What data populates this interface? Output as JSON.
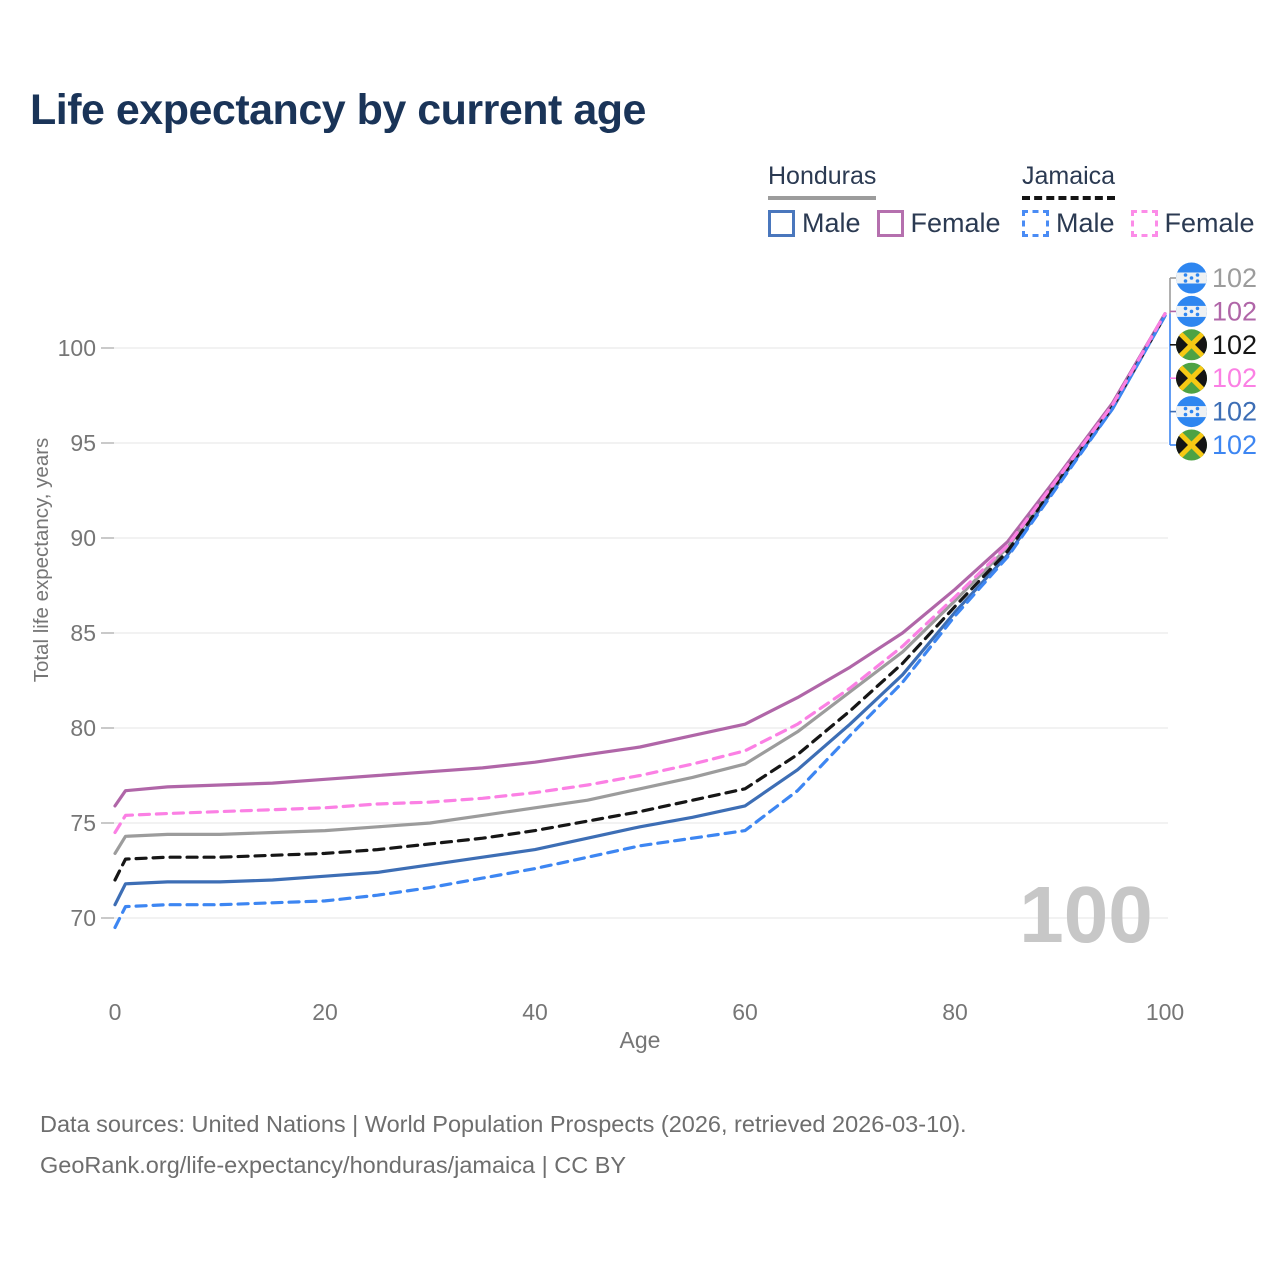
{
  "title": "Life expectancy by current age",
  "watermark": "100",
  "legend": {
    "groups": [
      {
        "name": "Honduras",
        "line_style": "solid",
        "line_color": "#9c9c9c",
        "items": [
          {
            "label": "Male",
            "color": "#4a77bd",
            "dashed": false
          },
          {
            "label": "Female",
            "color": "#b570ae",
            "dashed": false
          }
        ]
      },
      {
        "name": "Jamaica",
        "line_style": "dashed",
        "line_color": "#141414",
        "items": [
          {
            "label": "Male",
            "color": "#4a8cf5",
            "dashed": true
          },
          {
            "label": "Female",
            "color": "#fc8ce8",
            "dashed": true
          }
        ]
      }
    ]
  },
  "footer": {
    "line1": "Data sources: United Nations | World Population Prospects (2026, retrieved 2026-03-10).",
    "line2": "GeoRank.org/life-expectancy/honduras/jamaica | CC BY"
  },
  "chart_data": {
    "type": "line",
    "title": "Life expectancy by current age",
    "xlabel": "Age",
    "ylabel": "Total life expectancy, years",
    "xlim": [
      0,
      100
    ],
    "ylim": [
      68.5,
      103
    ],
    "x_ticks": [
      0,
      20,
      40,
      60,
      80,
      100
    ],
    "y_ticks": [
      70,
      75,
      80,
      85,
      90,
      95,
      100
    ],
    "grid": "horizontal",
    "legend_position": "top-right",
    "age_annotation": "100",
    "x": [
      0,
      1,
      5,
      10,
      15,
      20,
      25,
      30,
      35,
      40,
      45,
      50,
      55,
      60,
      65,
      70,
      75,
      80,
      85,
      90,
      95,
      100
    ],
    "series": [
      {
        "id": "honduras-total",
        "name": "Honduras — Total",
        "country": "Honduras",
        "flag": "honduras",
        "color": "#9c9c9c",
        "dash": false,
        "end_value_label": "102",
        "values": [
          73.4,
          74.3,
          74.4,
          74.4,
          74.5,
          74.6,
          74.8,
          75.0,
          75.4,
          75.8,
          76.2,
          76.8,
          77.4,
          78.1,
          79.8,
          81.9,
          84.0,
          86.7,
          89.5,
          93.2,
          96.9,
          101.8
        ]
      },
      {
        "id": "honduras-female",
        "name": "Honduras — Female",
        "country": "Honduras",
        "flag": "honduras",
        "color": "#b066a8",
        "dash": false,
        "end_value_label": "102",
        "values": [
          75.9,
          76.7,
          76.9,
          77.0,
          77.1,
          77.3,
          77.5,
          77.7,
          77.9,
          78.2,
          78.6,
          79.0,
          79.6,
          80.2,
          81.6,
          83.2,
          85.0,
          87.3,
          89.8,
          93.4,
          97.1,
          101.8
        ]
      },
      {
        "id": "jamaica-total",
        "name": "Jamaica — Total",
        "country": "Jamaica",
        "flag": "jamaica",
        "color": "#161616",
        "dash": true,
        "end_value_label": "102",
        "values": [
          72.0,
          73.1,
          73.2,
          73.2,
          73.3,
          73.4,
          73.6,
          73.9,
          74.2,
          74.6,
          75.1,
          75.6,
          76.2,
          76.8,
          78.6,
          80.9,
          83.4,
          86.4,
          89.3,
          93.1,
          96.9,
          101.7
        ]
      },
      {
        "id": "jamaica-female",
        "name": "Jamaica — Female",
        "country": "Jamaica",
        "flag": "jamaica",
        "color": "#fb80e4",
        "dash": true,
        "end_value_label": "102",
        "values": [
          74.5,
          75.4,
          75.5,
          75.6,
          75.7,
          75.8,
          76.0,
          76.1,
          76.3,
          76.6,
          77.0,
          77.5,
          78.1,
          78.8,
          80.2,
          82.1,
          84.3,
          86.9,
          89.6,
          93.3,
          97.0,
          101.8
        ]
      },
      {
        "id": "honduras-male",
        "name": "Honduras — Male",
        "country": "Honduras",
        "flag": "honduras",
        "color": "#3d6eb5",
        "dash": false,
        "end_value_label": "102",
        "values": [
          70.7,
          71.8,
          71.9,
          71.9,
          72.0,
          72.2,
          72.4,
          72.8,
          73.2,
          73.6,
          74.2,
          74.8,
          75.3,
          75.9,
          77.8,
          80.2,
          82.8,
          86.1,
          89.1,
          93.0,
          96.8,
          101.7
        ]
      },
      {
        "id": "jamaica-male",
        "name": "Jamaica — Male",
        "country": "Jamaica",
        "flag": "jamaica",
        "color": "#3d86f2",
        "dash": true,
        "end_value_label": "102",
        "values": [
          69.5,
          70.6,
          70.7,
          70.7,
          70.8,
          70.9,
          71.2,
          71.6,
          72.1,
          72.6,
          73.2,
          73.8,
          74.2,
          74.6,
          76.7,
          79.6,
          82.4,
          85.9,
          89.0,
          92.9,
          96.8,
          101.7
        ]
      }
    ]
  }
}
